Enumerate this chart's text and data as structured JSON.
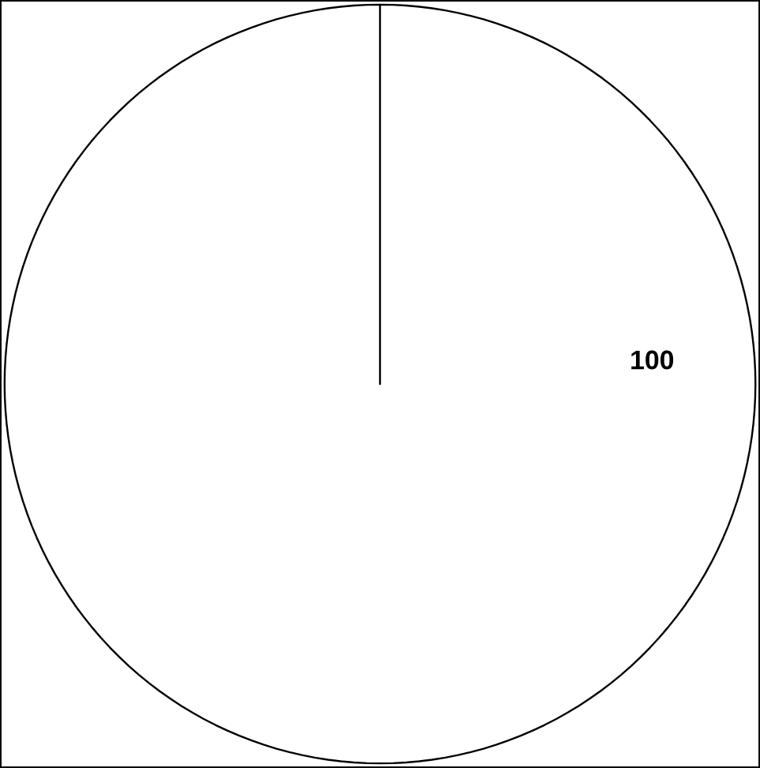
{
  "chart_data": {
    "type": "pie",
    "categories": [
      null
    ],
    "values": [
      100
    ],
    "colors": [
      "#ffffff"
    ],
    "data_labels": true
  }
}
